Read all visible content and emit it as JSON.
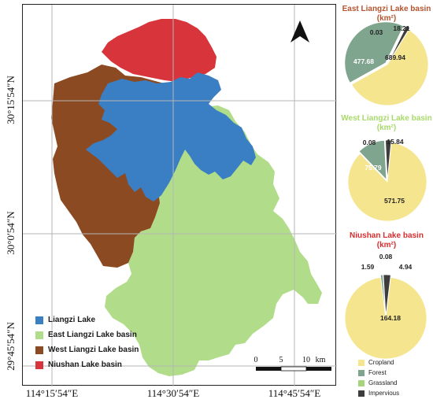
{
  "map": {
    "coords": {
      "lon_1": "114°15′54″E",
      "lon_2": "114°30′54″E",
      "lon_3": "114°45′54″E",
      "lat_1": "30°15′54″N",
      "lat_2": "30°0′54″N",
      "lat_3": "29°45′54″N"
    },
    "legend": [
      {
        "label": "Liangzi  Lake",
        "color": "#3a7fc4"
      },
      {
        "label": "East Liangzi  Lake basin",
        "color": "#b1dd8a"
      },
      {
        "label": "West Liangzi Lake basin",
        "color": "#8c4a23"
      },
      {
        "label": "Niushan Lake basin",
        "color": "#d8343b"
      }
    ],
    "scale": {
      "t0": "0",
      "t5": "5",
      "t10": "10",
      "unit": "km"
    },
    "north_icon": "north-arrow-icon"
  },
  "pies": [
    {
      "title": "East Liangzi Lake basin",
      "unit": "(km²)",
      "title_color": "#b5542f",
      "values": {
        "cropland": 689.94,
        "forest": 477.68,
        "grassland": 0.03,
        "impervious": 18.21
      },
      "labels": {
        "cropland": "689.94",
        "forest": "477.68",
        "grassland": "0.03",
        "impervious": "18.21"
      }
    },
    {
      "title": "West Liangzi Lake basin",
      "unit": "(km²)",
      "title_color": "#a8d96b",
      "values": {
        "cropland": 571.75,
        "forest": 75.79,
        "grassland": 0.08,
        "impervious": 15.84
      },
      "labels": {
        "cropland": "571.75",
        "forest": "75.79",
        "grassland": "0.08",
        "impervious": "15.84"
      }
    },
    {
      "title": "Niushan Lake basin",
      "unit": "(km²)",
      "title_color": "#d62e2e",
      "values": {
        "cropland": 164.18,
        "forest": 1.59,
        "grassland": 0.08,
        "impervious": 4.94
      },
      "labels": {
        "cropland": "164.18",
        "forest": "1.59",
        "grassland": "0.08",
        "impervious": "4.94"
      }
    }
  ],
  "pie_legend": [
    {
      "label": "Cropland",
      "color": "#f6e58f"
    },
    {
      "label": "Forest",
      "color": "#7fa58e"
    },
    {
      "label": "Grassland",
      "color": "#a5d47a"
    },
    {
      "label": "Impervious",
      "color": "#3d3d3d"
    }
  ],
  "chart_data": [
    {
      "type": "pie",
      "title": "East Liangzi Lake basin",
      "categories": [
        "Cropland",
        "Forest",
        "Grassland",
        "Impervious"
      ],
      "values": [
        689.94,
        477.68,
        0.03,
        18.21
      ]
    },
    {
      "type": "pie",
      "title": "West Liangzi Lake basin",
      "categories": [
        "Cropland",
        "Forest",
        "Grassland",
        "Impervious"
      ],
      "values": [
        571.75,
        75.79,
        0.08,
        15.84
      ]
    },
    {
      "type": "pie",
      "title": "Niushan Lake basin",
      "categories": [
        "Cropland",
        "Forest",
        "Grassland",
        "Impervious"
      ],
      "values": [
        164.18,
        1.59,
        0.08,
        4.94
      ]
    }
  ]
}
